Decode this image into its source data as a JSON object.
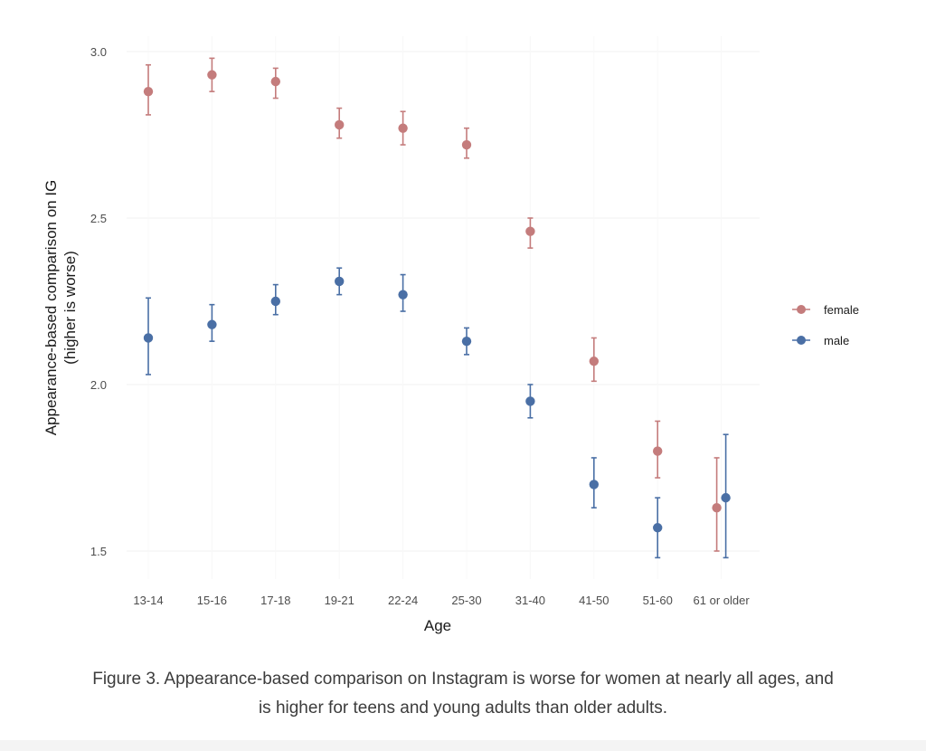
{
  "colors": {
    "female": "#c47c7c",
    "male": "#4a6fa5",
    "grid": "#f3f3f3"
  },
  "chart_data": {
    "type": "scatter",
    "title": "",
    "xlabel": "Age",
    "ylabel_line1": "Appearance-based comparison on IG",
    "ylabel_line2": "(higher is worse)",
    "ylim": [
      1.4,
      3.05
    ],
    "yticks": [
      1.5,
      2.0,
      2.5,
      3.0
    ],
    "ytick_labels": [
      "1.5",
      "2.0",
      "2.5",
      "3.0"
    ],
    "categories": [
      "13-14",
      "15-16",
      "17-18",
      "19-21",
      "22-24",
      "25-30",
      "31-40",
      "41-50",
      "51-60",
      "61 or older"
    ],
    "legend_position": "right",
    "series": [
      {
        "name": "female",
        "color": "#c47c7c",
        "values": [
          2.88,
          2.93,
          2.91,
          2.78,
          2.77,
          2.72,
          2.46,
          2.07,
          1.8,
          1.63
        ],
        "lower": [
          2.81,
          2.88,
          2.86,
          2.74,
          2.72,
          2.68,
          2.41,
          2.01,
          1.72,
          1.5
        ],
        "upper": [
          2.96,
          2.98,
          2.95,
          2.83,
          2.82,
          2.77,
          2.5,
          2.14,
          1.89,
          1.78
        ]
      },
      {
        "name": "male",
        "color": "#4a6fa5",
        "values": [
          2.14,
          2.18,
          2.25,
          2.31,
          2.27,
          2.13,
          1.95,
          1.7,
          1.57,
          1.66
        ],
        "lower": [
          2.03,
          2.13,
          2.21,
          2.27,
          2.22,
          2.09,
          1.9,
          1.63,
          1.48,
          1.48
        ],
        "upper": [
          2.26,
          2.24,
          2.3,
          2.35,
          2.33,
          2.17,
          2.0,
          1.78,
          1.66,
          1.85
        ]
      }
    ]
  },
  "caption": {
    "line1": "Figure 3. Appearance-based comparison on Instagram is worse for women at nearly all ages, and",
    "line2": "is higher for teens and young adults than older adults."
  }
}
